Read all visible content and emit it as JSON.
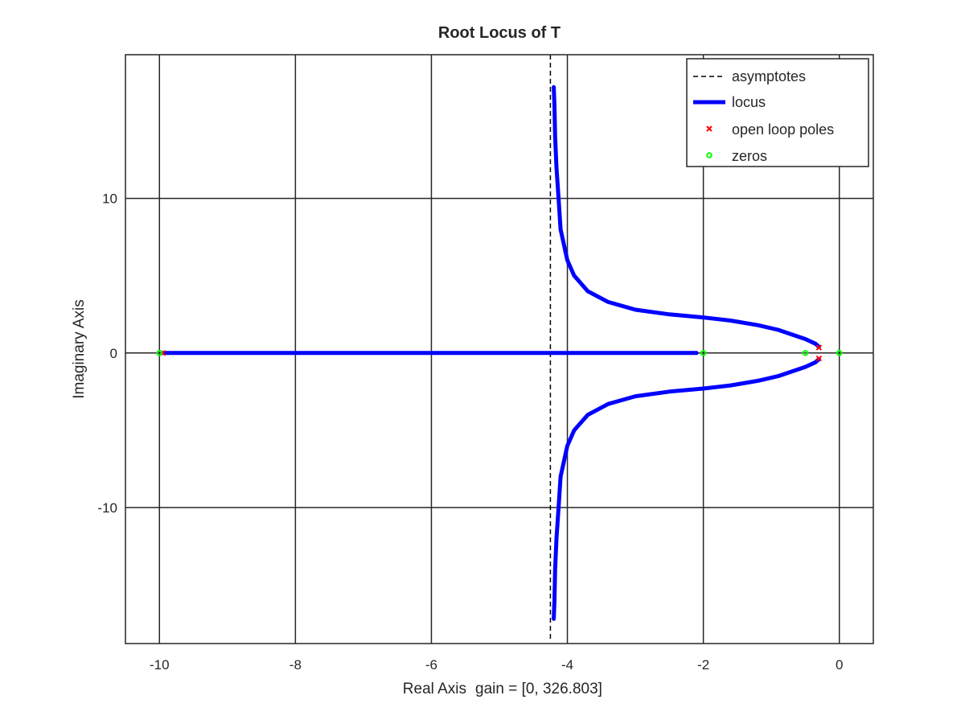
{
  "chart_data": {
    "type": "line",
    "title": "Root Locus of T",
    "xlabel": "Real Axis",
    "gain_label": "gain = [0, 326.803]",
    "ylabel": "Imaginary Axis",
    "xlim": [
      -10.5,
      0.5
    ],
    "ylim": [
      -18.8,
      19.3
    ],
    "xticks": [
      -10,
      -8,
      -6,
      -4,
      -2,
      0
    ],
    "xtick_labels": [
      "-10",
      "-8",
      "-6",
      "-4",
      "-2",
      "0"
    ],
    "yticks": [
      -10,
      0,
      10
    ],
    "ytick_labels": [
      "-10",
      "0",
      "10"
    ],
    "grid": true,
    "legend_position": "top-right",
    "legend": [
      {
        "label": "asymptotes",
        "style": "dashed-line",
        "color": "#000000"
      },
      {
        "label": "locus",
        "style": "thick-line",
        "color": "#0000ff"
      },
      {
        "label": "open loop poles",
        "style": "x-marker",
        "color": "#ff0000"
      },
      {
        "label": "zeros",
        "style": "o-marker",
        "color": "#00ff00"
      }
    ],
    "asymptote": {
      "x": -4.25,
      "y_range": [
        -18.5,
        19.3
      ]
    },
    "series": [
      {
        "name": "locus-upper-branch",
        "color": "#0000ff",
        "points": [
          [
            -0.3,
            0.4
          ],
          [
            -0.35,
            0.6
          ],
          [
            -0.5,
            0.9
          ],
          [
            -0.7,
            1.2
          ],
          [
            -0.9,
            1.5
          ],
          [
            -1.2,
            1.8
          ],
          [
            -1.6,
            2.1
          ],
          [
            -2.0,
            2.3
          ],
          [
            -2.5,
            2.5
          ],
          [
            -3.0,
            2.8
          ],
          [
            -3.4,
            3.3
          ],
          [
            -3.7,
            4.0
          ],
          [
            -3.9,
            5.0
          ],
          [
            -4.0,
            6.0
          ],
          [
            -4.05,
            7.0
          ],
          [
            -4.1,
            8.0
          ],
          [
            -4.13,
            10.0
          ],
          [
            -4.16,
            12.0
          ],
          [
            -4.18,
            14.0
          ],
          [
            -4.19,
            16.0
          ],
          [
            -4.2,
            17.2
          ]
        ]
      },
      {
        "name": "locus-lower-branch",
        "color": "#0000ff",
        "points": [
          [
            -0.3,
            -0.4
          ],
          [
            -0.35,
            -0.6
          ],
          [
            -0.5,
            -0.9
          ],
          [
            -0.7,
            -1.2
          ],
          [
            -0.9,
            -1.5
          ],
          [
            -1.2,
            -1.8
          ],
          [
            -1.6,
            -2.1
          ],
          [
            -2.0,
            -2.3
          ],
          [
            -2.5,
            -2.5
          ],
          [
            -3.0,
            -2.8
          ],
          [
            -3.4,
            -3.3
          ],
          [
            -3.7,
            -4.0
          ],
          [
            -3.9,
            -5.0
          ],
          [
            -4.0,
            -6.0
          ],
          [
            -4.05,
            -7.0
          ],
          [
            -4.1,
            -8.0
          ],
          [
            -4.13,
            -10.0
          ],
          [
            -4.16,
            -12.0
          ],
          [
            -4.18,
            -14.0
          ],
          [
            -4.19,
            -16.0
          ],
          [
            -4.2,
            -17.2
          ]
        ]
      },
      {
        "name": "locus-real-axis",
        "color": "#0000ff",
        "points": [
          [
            -9.95,
            0
          ],
          [
            -2.1,
            0
          ]
        ]
      }
    ],
    "poles": [
      [
        -0.3,
        0.35
      ],
      [
        -0.3,
        -0.35
      ],
      [
        -9.95,
        0
      ]
    ],
    "zeros": [
      [
        -10.0,
        0
      ],
      [
        -2.0,
        0
      ],
      [
        -0.5,
        0
      ],
      [
        0.0,
        0
      ]
    ]
  }
}
